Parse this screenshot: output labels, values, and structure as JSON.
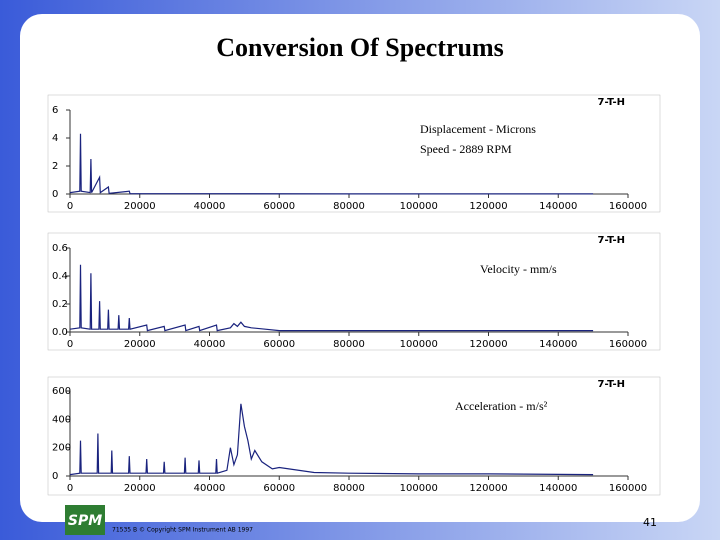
{
  "slide": {
    "title": "Conversion Of Spectrums",
    "footer": "71535 B © Copyright SPM Instrument AB 1997",
    "logo": "SPM",
    "page": "41"
  },
  "chart_data": [
    {
      "type": "line",
      "label": "7-T-H",
      "annotations": [
        "Displacement - Microns",
        "Speed - 2889 RPM"
      ],
      "color": "#1a237e",
      "xlim": [
        0,
        160000
      ],
      "xticks": [
        0,
        20000,
        40000,
        60000,
        80000,
        100000,
        120000,
        140000,
        160000
      ],
      "ylim": [
        0,
        6
      ],
      "yticks": [
        0,
        2,
        4,
        6
      ],
      "x": [
        0,
        2800,
        3000,
        3200,
        5800,
        6000,
        6200,
        8500,
        8700,
        11000,
        11200,
        17000,
        17200,
        40000,
        80000,
        120000,
        150000
      ],
      "values": [
        0.1,
        0.2,
        4.3,
        0.2,
        0.1,
        2.5,
        0.1,
        1.2,
        0.1,
        0.5,
        0.05,
        0.2,
        0.02,
        0.02,
        0.01,
        0.01,
        0.01
      ]
    },
    {
      "type": "line",
      "label": "7-T-H",
      "annotations": [
        "Velocity - mm/s"
      ],
      "color": "#1a237e",
      "xlim": [
        0,
        160000
      ],
      "xticks": [
        0,
        20000,
        40000,
        60000,
        80000,
        100000,
        120000,
        140000,
        160000
      ],
      "ylim": [
        0,
        0.6
      ],
      "yticks": [
        {
          "value": 0,
          "label": "0.0"
        },
        0.2,
        0.4,
        0.6
      ],
      "x": [
        0,
        2800,
        3000,
        3200,
        5800,
        6000,
        6200,
        8300,
        8500,
        8700,
        10800,
        11000,
        11200,
        13800,
        14000,
        14200,
        16800,
        17000,
        17200,
        22000,
        22200,
        27000,
        27200,
        33000,
        33200,
        37000,
        37200,
        42000,
        42200,
        46000,
        47000,
        48000,
        49000,
        50000,
        52000,
        56000,
        60000,
        80000,
        100000,
        120000,
        150000
      ],
      "values": [
        0.02,
        0.03,
        0.48,
        0.03,
        0.02,
        0.42,
        0.02,
        0.02,
        0.22,
        0.02,
        0.02,
        0.16,
        0.02,
        0.02,
        0.12,
        0.02,
        0.02,
        0.1,
        0.02,
        0.05,
        0.01,
        0.04,
        0.01,
        0.05,
        0.01,
        0.04,
        0.01,
        0.05,
        0.01,
        0.03,
        0.06,
        0.04,
        0.07,
        0.04,
        0.03,
        0.02,
        0.01,
        0.01,
        0.01,
        0.01,
        0.01
      ]
    },
    {
      "type": "line",
      "label": "7-T-H",
      "annotations": [
        "Acceleration - m/s²"
      ],
      "color": "#1a237e",
      "xlim": [
        0,
        160000
      ],
      "xticks": [
        0,
        20000,
        40000,
        60000,
        80000,
        100000,
        120000,
        140000,
        160000
      ],
      "ylim": [
        0,
        600
      ],
      "yticks": [
        0,
        200,
        400,
        600
      ],
      "x": [
        0,
        2800,
        3000,
        3200,
        7800,
        8000,
        8200,
        11800,
        12000,
        12200,
        16800,
        17000,
        17200,
        21800,
        22000,
        22200,
        26800,
        27000,
        27200,
        32800,
        33000,
        33200,
        36800,
        37000,
        37200,
        41800,
        42000,
        42200,
        45000,
        46000,
        47000,
        48000,
        49000,
        50000,
        51000,
        52000,
        53000,
        55000,
        58000,
        60000,
        70000,
        80000,
        100000,
        120000,
        150000
      ],
      "values": [
        10,
        20,
        250,
        20,
        20,
        300,
        20,
        20,
        180,
        20,
        20,
        140,
        20,
        20,
        120,
        20,
        20,
        100,
        20,
        20,
        130,
        20,
        20,
        110,
        20,
        20,
        120,
        20,
        40,
        200,
        80,
        150,
        510,
        350,
        250,
        120,
        180,
        100,
        50,
        60,
        25,
        20,
        15,
        15,
        10
      ]
    }
  ]
}
